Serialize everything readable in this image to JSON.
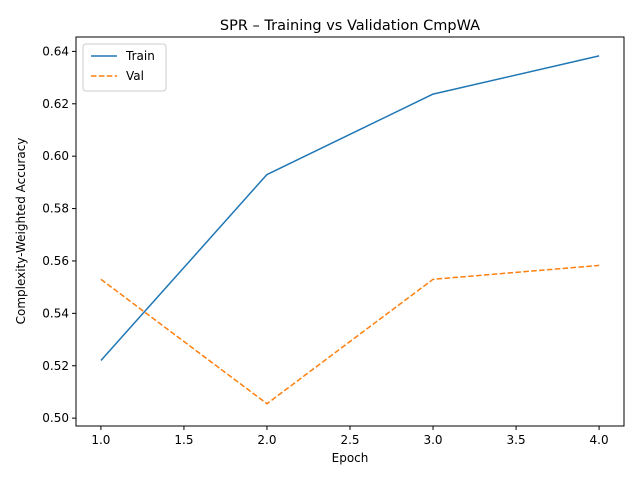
{
  "chart_data": {
    "type": "line",
    "title": "SPR – Training vs Validation CmpWA",
    "xlabel": "Epoch",
    "ylabel": "Complexity-Weighted Accuracy",
    "xlim": [
      0.85,
      4.15
    ],
    "ylim": [
      0.497,
      0.6455
    ],
    "xticks": [
      1.0,
      1.5,
      2.0,
      2.5,
      3.0,
      3.5,
      4.0
    ],
    "xtick_labels": [
      "1.0",
      "1.5",
      "2.0",
      "2.5",
      "3.0",
      "3.5",
      "4.0"
    ],
    "yticks": [
      0.5,
      0.52,
      0.54,
      0.56,
      0.58,
      0.6,
      0.62,
      0.64
    ],
    "ytick_labels": [
      "0.50",
      "0.52",
      "0.54",
      "0.56",
      "0.58",
      "0.60",
      "0.62",
      "0.64"
    ],
    "grid": false,
    "legend_position": "top-left",
    "series": [
      {
        "name": "Train",
        "color": "#1f77b4",
        "style": "solid",
        "x": [
          1,
          2,
          3,
          4
        ],
        "y": [
          0.522,
          0.593,
          0.6237,
          0.6383
        ]
      },
      {
        "name": "Val",
        "color": "#ff7f0e",
        "style": "dashed",
        "x": [
          1,
          2,
          3,
          4
        ],
        "y": [
          0.553,
          0.5055,
          0.553,
          0.5583
        ]
      }
    ]
  }
}
